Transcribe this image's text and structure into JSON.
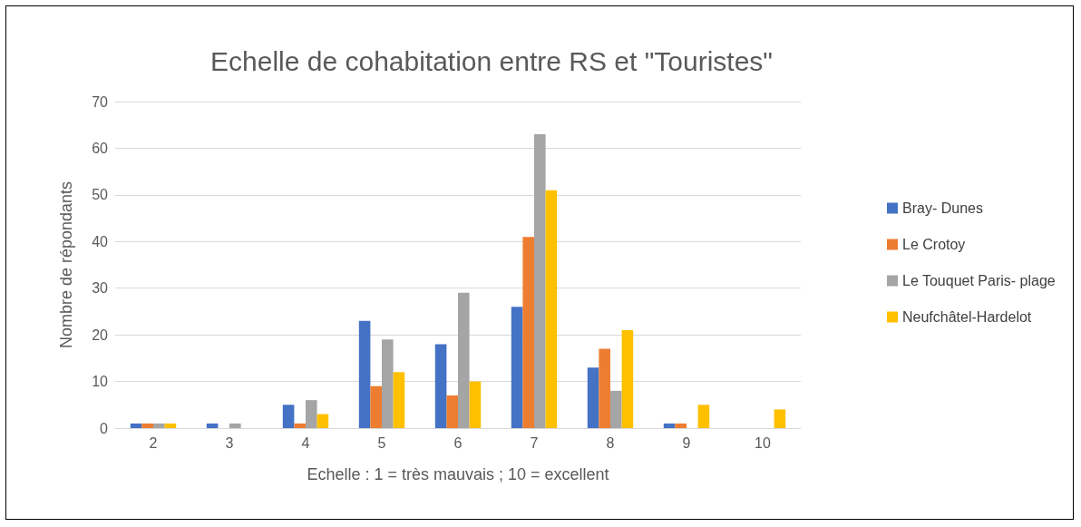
{
  "chart_data": {
    "type": "bar",
    "title": "Echelle de cohabitation entre RS et \"Touristes\"",
    "xlabel": "Echelle : 1 = très mauvais ; 10 = excellent",
    "ylabel": "Nombre de répondants",
    "categories": [
      "2",
      "3",
      "4",
      "5",
      "6",
      "7",
      "8",
      "9",
      "10"
    ],
    "series": [
      {
        "name": "Bray- Dunes",
        "color": "#4472c4",
        "values": [
          1,
          1,
          5,
          23,
          18,
          26,
          13,
          1,
          null
        ]
      },
      {
        "name": "Le Crotoy",
        "color": "#ed7d31",
        "values": [
          1,
          null,
          1,
          9,
          7,
          41,
          17,
          1,
          null
        ]
      },
      {
        "name": "Le Touquet Paris- plage",
        "color": "#a5a5a5",
        "values": [
          1,
          1,
          6,
          19,
          29,
          63,
          8,
          null,
          null
        ]
      },
      {
        "name": "Neufchâtel-Hardelot",
        "color": "#ffc000",
        "values": [
          1,
          null,
          3,
          12,
          10,
          51,
          21,
          5,
          4
        ]
      }
    ],
    "ylim": [
      0,
      70
    ],
    "yticks": [
      0,
      10,
      20,
      30,
      40,
      50,
      60,
      70
    ],
    "grid": "y",
    "legend": "right"
  }
}
